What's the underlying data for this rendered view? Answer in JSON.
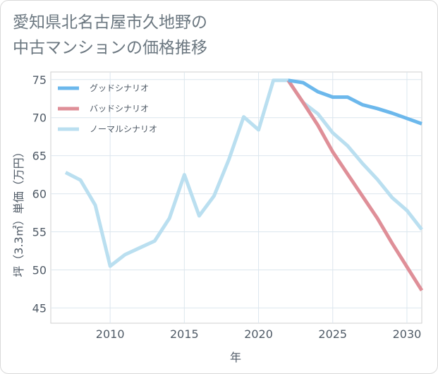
{
  "page": {
    "title_line1": "愛知県北名古屋市久地野の",
    "title_line2": "中古マンションの価格推移"
  },
  "chart_data": {
    "type": "line",
    "xlabel": "年",
    "ylabel": "坪（3.3㎡）単価（万円）",
    "xlim": [
      2006,
      2031
    ],
    "ylim": [
      43,
      76
    ],
    "xticks": [
      2010,
      2015,
      2020,
      2025,
      2030
    ],
    "yticks": [
      45,
      50,
      55,
      60,
      65,
      70,
      75
    ],
    "grid": true,
    "legend_position": "top-left",
    "series": [
      {
        "name": "グッドシナリオ",
        "color": "#6cb8ec",
        "x": [
          2022,
          2023,
          2024,
          2025,
          2026,
          2027,
          2028,
          2029,
          2030,
          2031
        ],
        "values": [
          74.9,
          74.6,
          73.4,
          72.7,
          72.7,
          71.7,
          71.2,
          70.6,
          69.9,
          69.2
        ]
      },
      {
        "name": "バッドシナリオ",
        "color": "#df8f98",
        "x": [
          2022,
          2023,
          2024,
          2025,
          2026,
          2027,
          2028,
          2029,
          2030,
          2031
        ],
        "values": [
          74.9,
          72.0,
          69.0,
          65.5,
          62.6,
          59.7,
          56.8,
          53.5,
          50.4,
          47.3
        ]
      },
      {
        "name": "ノーマルシナリオ",
        "color": "#badff0",
        "x": [
          2007,
          2008,
          2009,
          2010,
          2011,
          2012,
          2013,
          2014,
          2015,
          2016,
          2017,
          2018,
          2019,
          2020,
          2021,
          2022,
          2023,
          2024,
          2025,
          2026,
          2027,
          2028,
          2029,
          2030,
          2031
        ],
        "values": [
          62.8,
          61.8,
          58.5,
          50.5,
          52.0,
          52.9,
          53.8,
          56.8,
          62.5,
          57.1,
          59.7,
          64.5,
          70.1,
          68.4,
          74.9,
          74.9,
          72.0,
          70.5,
          68.0,
          66.3,
          64.0,
          61.9,
          59.5,
          57.8,
          55.3
        ]
      }
    ]
  }
}
